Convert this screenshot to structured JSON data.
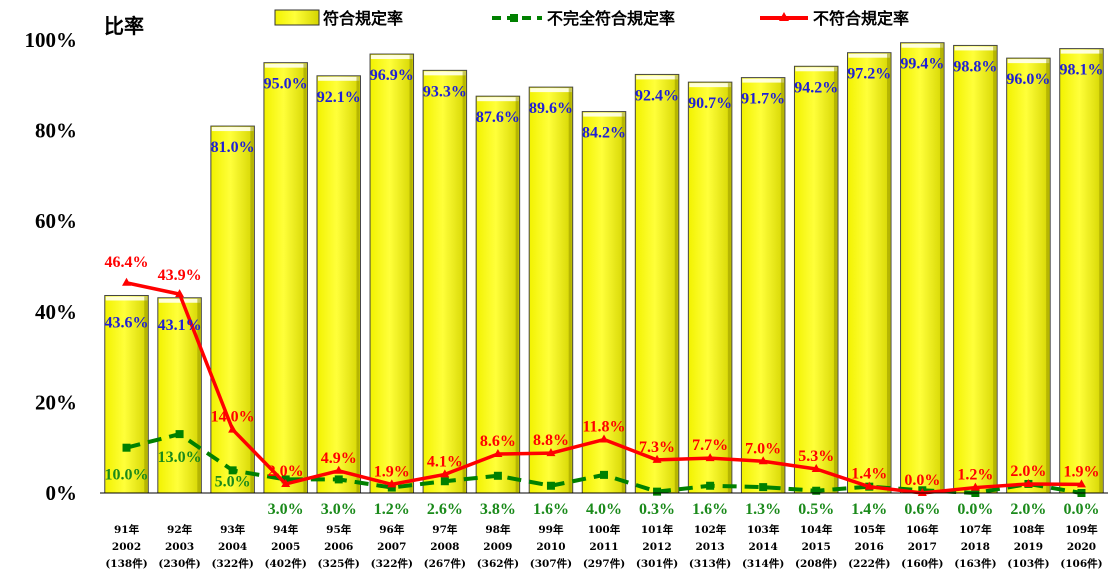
{
  "chart_data": {
    "type": "bar",
    "ylabel": "比率",
    "ylim": [
      0,
      100
    ],
    "yticks": [
      "0%",
      "20%",
      "40%",
      "60%",
      "80%",
      "100%"
    ],
    "categories": [
      [
        "91年",
        "2002",
        "(138件)"
      ],
      [
        "92年",
        "2003",
        "(230件)"
      ],
      [
        "93年",
        "2004",
        "(322件)"
      ],
      [
        "94年",
        "2005",
        "(402件)"
      ],
      [
        "95年",
        "2006",
        "(325件)"
      ],
      [
        "96年",
        "2007",
        "(322件)"
      ],
      [
        "97年",
        "2008",
        "(267件)"
      ],
      [
        "98年",
        "2009",
        "(362件)"
      ],
      [
        "99年",
        "2010",
        "(307件)"
      ],
      [
        "100年",
        "2011",
        "(297件)"
      ],
      [
        "101年",
        "2012",
        "(301件)"
      ],
      [
        "102年",
        "2013",
        "(313件)"
      ],
      [
        "103年",
        "2014",
        "(314件)"
      ],
      [
        "104年",
        "2015",
        "(208件)"
      ],
      [
        "105年",
        "2016",
        "(222件)"
      ],
      [
        "106年",
        "2017",
        "(160件)"
      ],
      [
        "107年",
        "2018",
        "(163件)"
      ],
      [
        "108年",
        "2019",
        "(103件)"
      ],
      [
        "109年",
        "2020",
        "(106件)"
      ]
    ],
    "series": [
      {
        "name": "符合規定率",
        "kind": "bar",
        "color": "#ffff00",
        "values": [
          43.6,
          43.1,
          81.0,
          95.0,
          92.1,
          96.9,
          93.3,
          87.6,
          89.6,
          84.2,
          92.4,
          90.7,
          91.7,
          94.2,
          97.2,
          99.4,
          98.8,
          96.0,
          98.1
        ],
        "labels": [
          "43.6%",
          "43.1%",
          "81.0%",
          "95.0%",
          "92.1%",
          "96.9%",
          "93.3%",
          "87.6%",
          "89.6%",
          "84.2%",
          "92.4%",
          "90.7%",
          "91.7%",
          "94.2%",
          "97.2%",
          "99.4%",
          "98.8%",
          "96.0%",
          "98.1%"
        ]
      },
      {
        "name": "不完全符合規定率",
        "kind": "line-dashed",
        "color": "#008000",
        "values": [
          10.0,
          13.0,
          5.0,
          3.0,
          3.0,
          1.2,
          2.6,
          3.8,
          1.6,
          4.0,
          0.3,
          1.6,
          1.3,
          0.5,
          1.4,
          0.6,
          0.0,
          2.0,
          0.0
        ],
        "labels": [
          "10.0%",
          "13.0%",
          "5.0%",
          "3.0%",
          "3.0%",
          "1.2%",
          "2.6%",
          "3.8%",
          "1.6%",
          "4.0%",
          "0.3%",
          "1.6%",
          "1.3%",
          "0.5%",
          "1.4%",
          "0.6%",
          "0.0%",
          "2.0%",
          "0.0%"
        ]
      },
      {
        "name": "不符合規定率",
        "kind": "line",
        "color": "#ff0000",
        "values": [
          46.4,
          43.9,
          14.0,
          2.0,
          4.9,
          1.9,
          4.1,
          8.6,
          8.8,
          11.8,
          7.3,
          7.7,
          7.0,
          5.3,
          1.4,
          0.0,
          1.2,
          2.0,
          1.9
        ],
        "labels": [
          "46.4%",
          "43.9%",
          "14.0%",
          "2.0%",
          "4.9%",
          "1.9%",
          "4.1%",
          "8.6%",
          "8.8%",
          "11.8%",
          "7.3%",
          "7.7%",
          "7.0%",
          "5.3%",
          "1.4%",
          "0.0%",
          "1.2%",
          "2.0%",
          "1.9%"
        ]
      }
    ],
    "legend_position": "top",
    "grid": false
  }
}
